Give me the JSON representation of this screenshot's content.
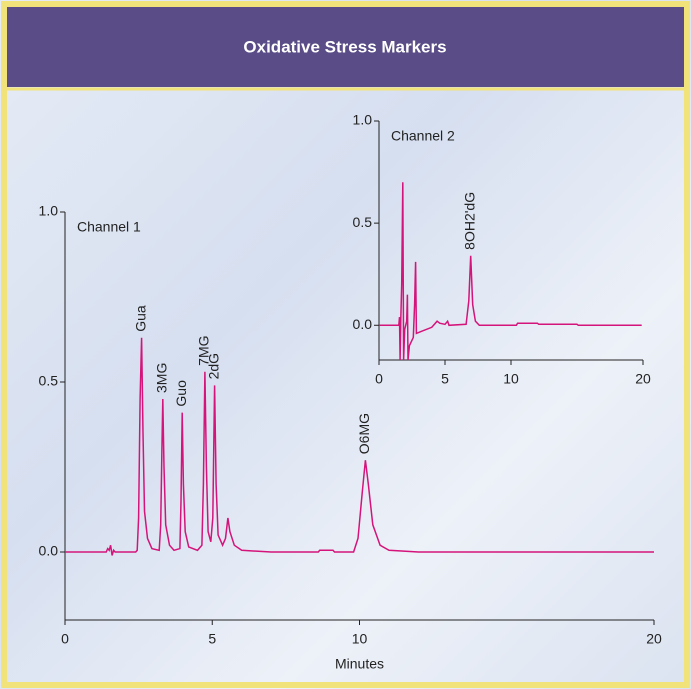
{
  "chart_data": [
    {
      "type": "line",
      "title": "Oxidative Stress Markers",
      "annotation": "Channel 1",
      "xlabel": "Minutes",
      "color": "#d4147a",
      "x": [
        0,
        1.4,
        1.45,
        1.5,
        1.55,
        1.6,
        1.65,
        1.7,
        2.4,
        2.45,
        2.5,
        2.55,
        2.6,
        2.65,
        2.7,
        2.8,
        2.95,
        3.2,
        3.25,
        3.29,
        3.32,
        3.36,
        3.42,
        3.55,
        3.7,
        3.9,
        3.94,
        3.98,
        4.02,
        4.08,
        4.2,
        4.5,
        4.65,
        4.7,
        4.75,
        4.8,
        4.86,
        4.95,
        5.02,
        5.08,
        5.13,
        5.2,
        5.35,
        5.45,
        5.53,
        5.6,
        5.75,
        6,
        7,
        8.6,
        8.65,
        9.1,
        9.15,
        9.8,
        9.95,
        10.1,
        10.2,
        10.3,
        10.45,
        10.7,
        11,
        12,
        20
      ],
      "values": [
        0,
        0,
        0.01,
        0.005,
        0.02,
        -0.01,
        0.005,
        0,
        0,
        0.005,
        0.1,
        0.45,
        0.63,
        0.35,
        0.12,
        0.04,
        0.01,
        0.005,
        0.08,
        0.3,
        0.45,
        0.25,
        0.08,
        0.02,
        0.005,
        0.01,
        0.15,
        0.41,
        0.2,
        0.06,
        0.015,
        0.005,
        0.02,
        0.2,
        0.53,
        0.25,
        0.06,
        0.03,
        0.1,
        0.49,
        0.2,
        0.05,
        0.02,
        0.04,
        0.1,
        0.06,
        0.02,
        0.005,
        0,
        0,
        0.005,
        0.005,
        0,
        0,
        0.04,
        0.18,
        0.27,
        0.2,
        0.08,
        0.02,
        0.005,
        0,
        0
      ],
      "peak_labels": [
        "Gua",
        "3MG",
        "Guo",
        "7MG",
        "2dG",
        "O6MG"
      ],
      "xlim": [
        0,
        20
      ],
      "xticks": [
        0,
        5,
        10,
        20
      ],
      "ylim": [
        -0.2,
        1.0
      ],
      "yticks": [
        {
          "value": 0,
          "label": "0.0"
        },
        {
          "value": 0.5,
          "label": "0.5"
        },
        {
          "value": 1,
          "label": "1.0"
        }
      ]
    },
    {
      "type": "line",
      "annotation": "Channel 2",
      "color": "#d4147a",
      "x": [
        0,
        1.5,
        1.55,
        1.6,
        1.65,
        1.72,
        1.8,
        1.86,
        1.95,
        2.1,
        2.15,
        2.2,
        2.3,
        2.6,
        2.7,
        2.77,
        2.83,
        3.2,
        4,
        4.4,
        4.6,
        5,
        5.2,
        5.3,
        6.6,
        6.8,
        6.95,
        7.1,
        7.3,
        7.6,
        10.4,
        10.5,
        12,
        12.1,
        15,
        15.1,
        19.9
      ],
      "values": [
        0,
        0,
        0.04,
        -0.17,
        0.03,
        0.2,
        0.7,
        -0.17,
        -0.02,
        0.02,
        0.15,
        -0.17,
        -0.1,
        -0.06,
        0.1,
        0.31,
        -0.04,
        -0.03,
        -0.01,
        0.02,
        0.01,
        0.005,
        0.02,
        0,
        0.005,
        0.12,
        0.34,
        0.1,
        0.02,
        0,
        0,
        0.01,
        0.01,
        0.005,
        0.005,
        0,
        0
      ],
      "peak_labels": [
        "8OH2'dG"
      ],
      "xlim": [
        0,
        20
      ],
      "xticks": [
        0,
        5,
        10,
        20
      ],
      "ylim": [
        -0.17,
        1.0
      ],
      "yticks": [
        {
          "value": 0,
          "label": "0.0"
        },
        {
          "value": 0.5,
          "label": "0.5"
        },
        {
          "value": 1,
          "label": "1.0"
        }
      ]
    }
  ]
}
